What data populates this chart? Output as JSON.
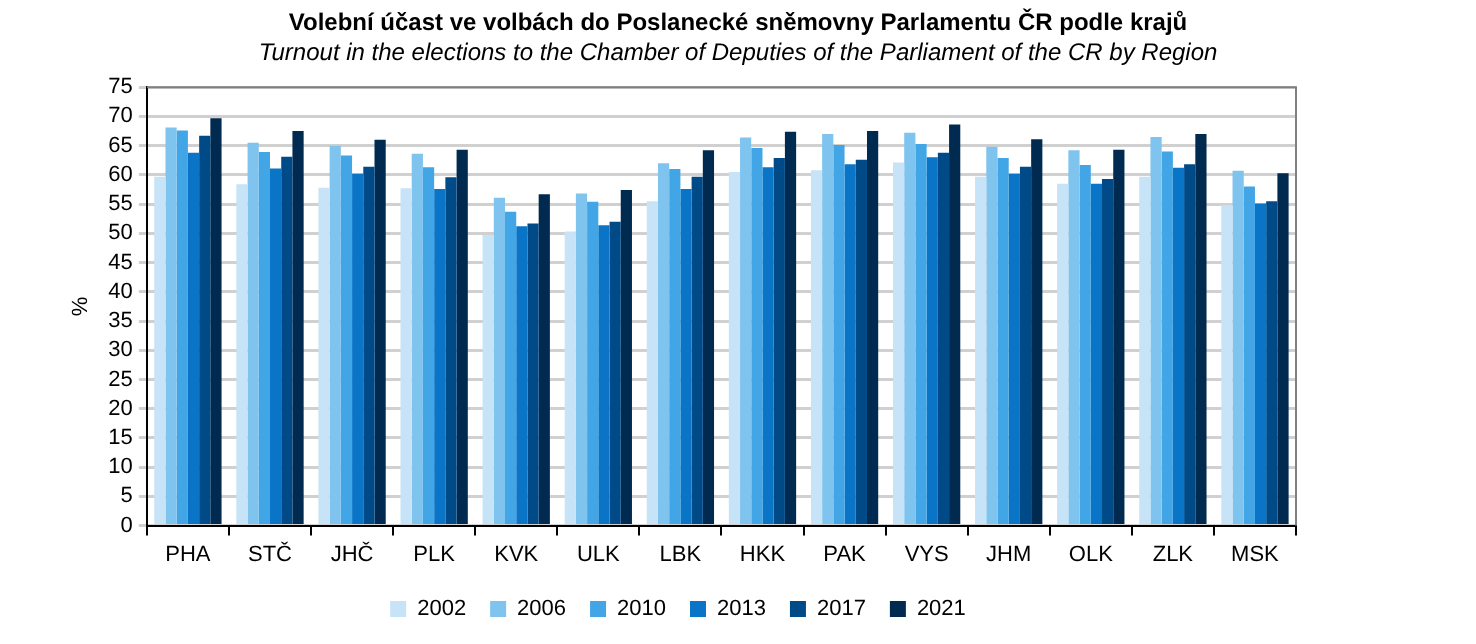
{
  "chart_data": {
    "type": "bar",
    "title": "Volební účast ve volbách do Poslanecké sněmovny Parlamentu ČR podle krajů",
    "subtitle": "Turnout in the elections to the Chamber of Deputies of the Parliament of the CR by Region",
    "ylabel": "%",
    "categories": [
      "PHA",
      "STČ",
      "JHČ",
      "PLK",
      "KVK",
      "ULK",
      "LBK",
      "HKK",
      "PAK",
      "VYS",
      "JHM",
      "OLK",
      "ZLK",
      "MSK"
    ],
    "ylim": [
      0,
      75
    ],
    "yticks": [
      0,
      5,
      10,
      15,
      20,
      25,
      30,
      35,
      40,
      45,
      50,
      55,
      60,
      65,
      70,
      75
    ],
    "grid": "y",
    "legend": "bottom",
    "series": [
      {
        "name": "2002",
        "color": "#c6e3f7",
        "values": [
          59.7,
          58.4,
          57.8,
          57.7,
          49.7,
          50.3,
          55.5,
          60.5,
          60.8,
          62.1,
          59.7,
          58.5,
          59.7,
          54.8
        ]
      },
      {
        "name": "2006",
        "color": "#7fc4ef",
        "values": [
          68.1,
          65.5,
          65.0,
          63.6,
          56.1,
          56.8,
          62.0,
          66.4,
          67.0,
          67.2,
          64.8,
          64.2,
          66.5,
          60.7
        ]
      },
      {
        "name": "2010",
        "color": "#41a5e6",
        "values": [
          67.6,
          63.9,
          63.3,
          61.3,
          53.7,
          55.4,
          61.0,
          64.6,
          65.1,
          65.3,
          62.9,
          61.7,
          64.0,
          58.0
        ]
      },
      {
        "name": "2013",
        "color": "#0a74c7",
        "values": [
          63.8,
          61.1,
          60.2,
          57.6,
          51.2,
          51.4,
          57.6,
          61.3,
          61.8,
          63.0,
          60.2,
          58.5,
          61.2,
          55.1
        ]
      },
      {
        "name": "2017",
        "color": "#004b87",
        "values": [
          66.7,
          63.1,
          61.4,
          59.6,
          51.7,
          52.0,
          59.7,
          62.9,
          62.6,
          63.8,
          61.4,
          59.3,
          61.8,
          55.5
        ]
      },
      {
        "name": "2021",
        "color": "#002a4f",
        "values": [
          69.7,
          67.5,
          66.0,
          64.3,
          56.7,
          57.4,
          64.2,
          67.4,
          67.5,
          68.6,
          66.1,
          64.3,
          67.0,
          60.3
        ]
      }
    ]
  }
}
